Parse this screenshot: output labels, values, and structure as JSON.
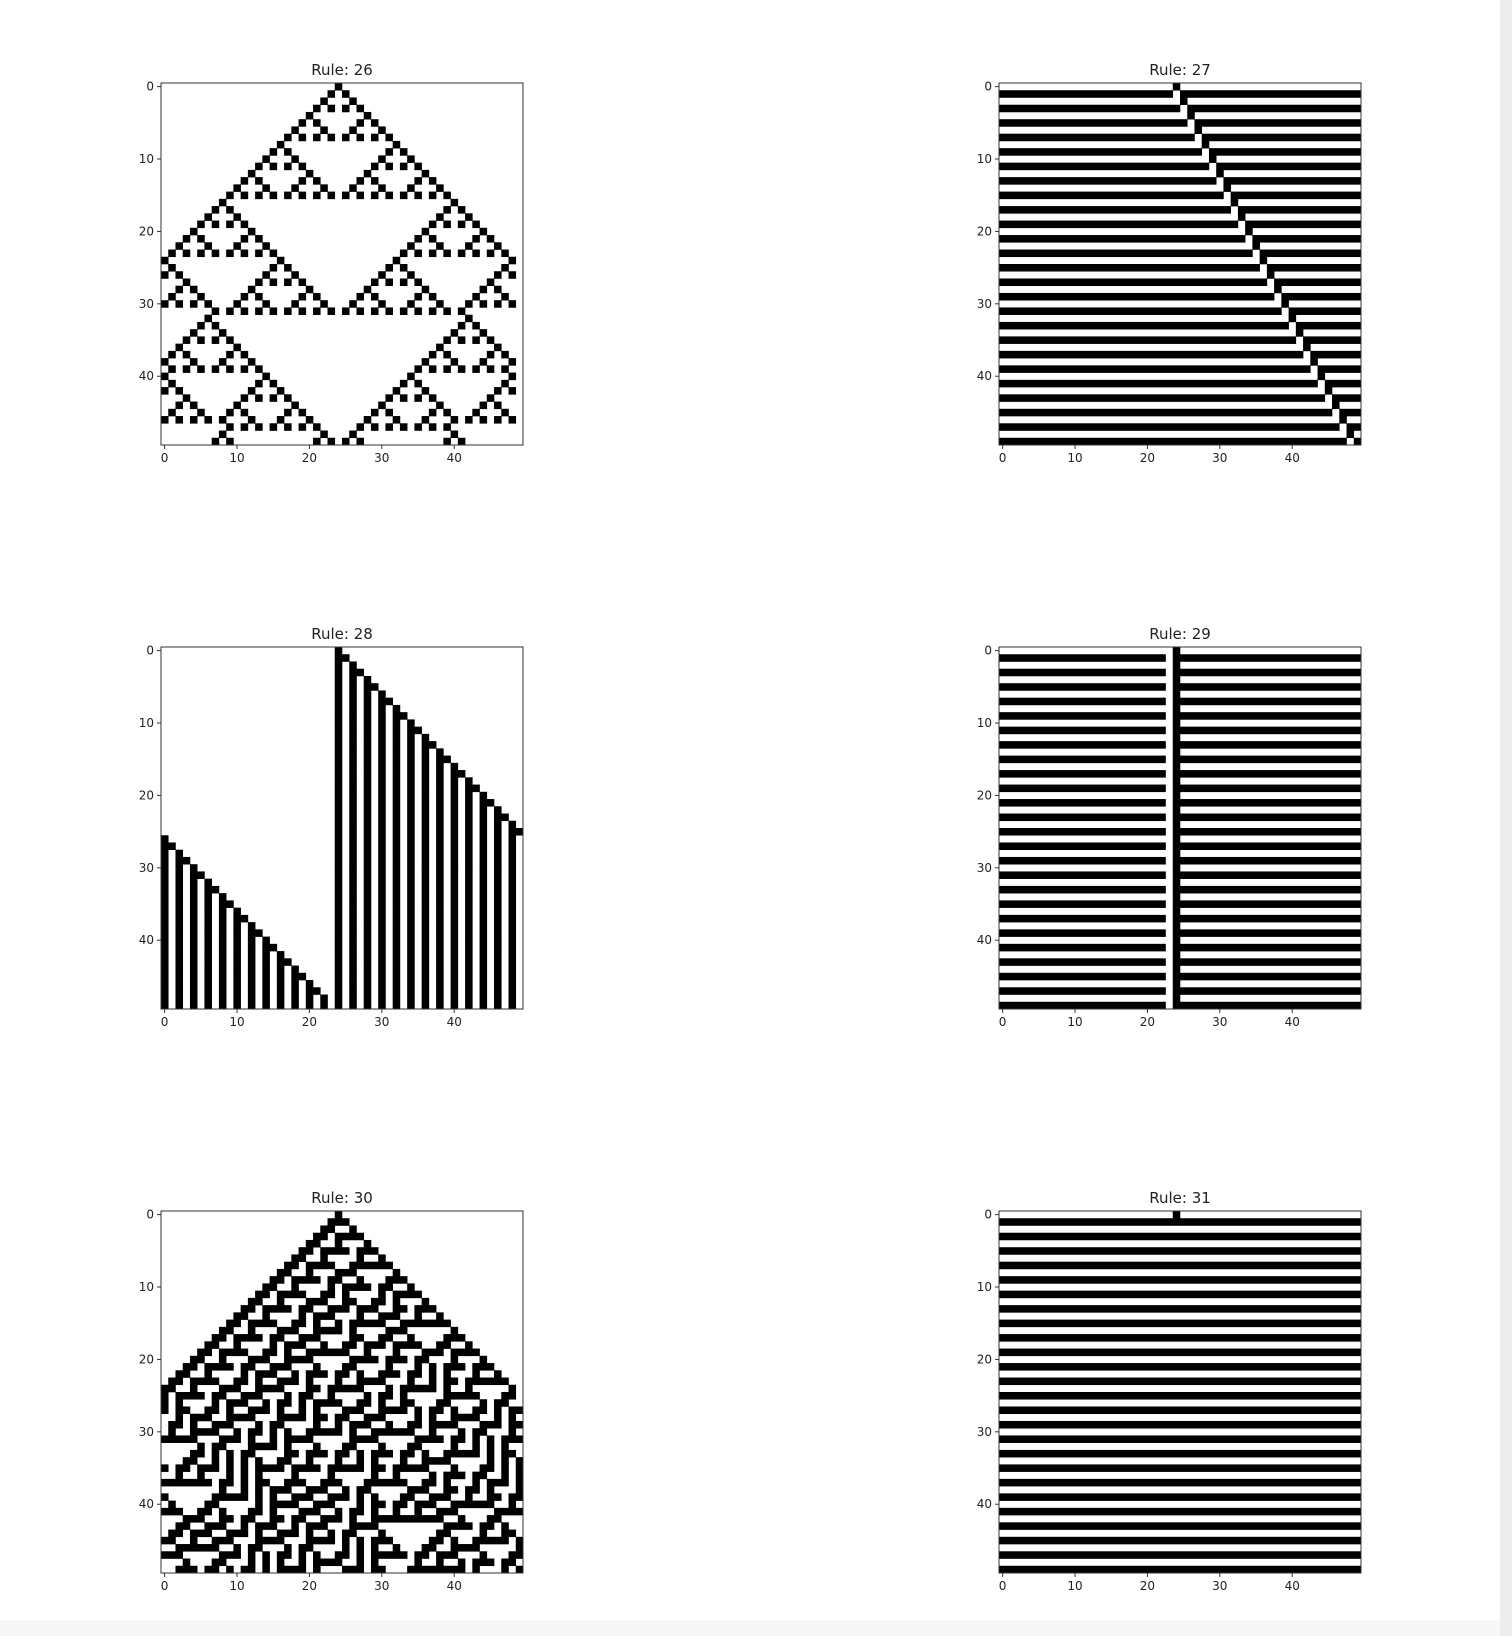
{
  "figure": {
    "grid": {
      "rows": 3,
      "cols": 2
    },
    "cell_states": {
      "off": "white",
      "on": "black"
    },
    "colors": {
      "on": "#000000",
      "off": "#ffffff",
      "axes": "#333333",
      "text": "#222222"
    }
  },
  "chart_data": [
    {
      "type": "heatmap",
      "title": "Rule: 26",
      "rule": 26,
      "rows": 50,
      "cols": 50,
      "initial_row": "single black cell at column 24",
      "xticks": [
        0,
        10,
        20,
        30,
        40
      ],
      "yticks": [
        0,
        10,
        20,
        30,
        40
      ],
      "xlim": [
        0,
        49
      ],
      "ylim": [
        49,
        0
      ],
      "grid": false
    },
    {
      "type": "heatmap",
      "title": "Rule: 27",
      "rule": 27,
      "rows": 50,
      "cols": 50,
      "initial_row": "single black cell at column 24",
      "xticks": [
        0,
        10,
        20,
        30,
        40
      ],
      "yticks": [
        0,
        10,
        20,
        30,
        40
      ],
      "xlim": [
        0,
        49
      ],
      "ylim": [
        49,
        0
      ],
      "grid": false
    },
    {
      "type": "heatmap",
      "title": "Rule: 28",
      "rule": 28,
      "rows": 50,
      "cols": 50,
      "initial_row": "single black cell at column 24",
      "xticks": [
        0,
        10,
        20,
        30,
        40
      ],
      "yticks": [
        0,
        10,
        20,
        30,
        40
      ],
      "xlim": [
        0,
        49
      ],
      "ylim": [
        49,
        0
      ],
      "grid": false
    },
    {
      "type": "heatmap",
      "title": "Rule: 29",
      "rule": 29,
      "rows": 50,
      "cols": 50,
      "initial_row": "single black cell at column 24",
      "xticks": [
        0,
        10,
        20,
        30,
        40
      ],
      "yticks": [
        0,
        10,
        20,
        30,
        40
      ],
      "xlim": [
        0,
        49
      ],
      "ylim": [
        49,
        0
      ],
      "grid": false
    },
    {
      "type": "heatmap",
      "title": "Rule: 30",
      "rule": 30,
      "rows": 50,
      "cols": 50,
      "initial_row": "single black cell at column 24",
      "xticks": [
        0,
        10,
        20,
        30,
        40
      ],
      "yticks": [
        0,
        10,
        20,
        30,
        40
      ],
      "xlim": [
        0,
        49
      ],
      "ylim": [
        49,
        0
      ],
      "grid": false
    },
    {
      "type": "heatmap",
      "title": "Rule: 31",
      "rule": 31,
      "rows": 50,
      "cols": 50,
      "initial_row": "single black cell at column 24",
      "xticks": [
        0,
        10,
        20,
        30,
        40
      ],
      "yticks": [
        0,
        10,
        20,
        30,
        40
      ],
      "xlim": [
        0,
        49
      ],
      "ylim": [
        49,
        0
      ],
      "grid": false
    }
  ]
}
